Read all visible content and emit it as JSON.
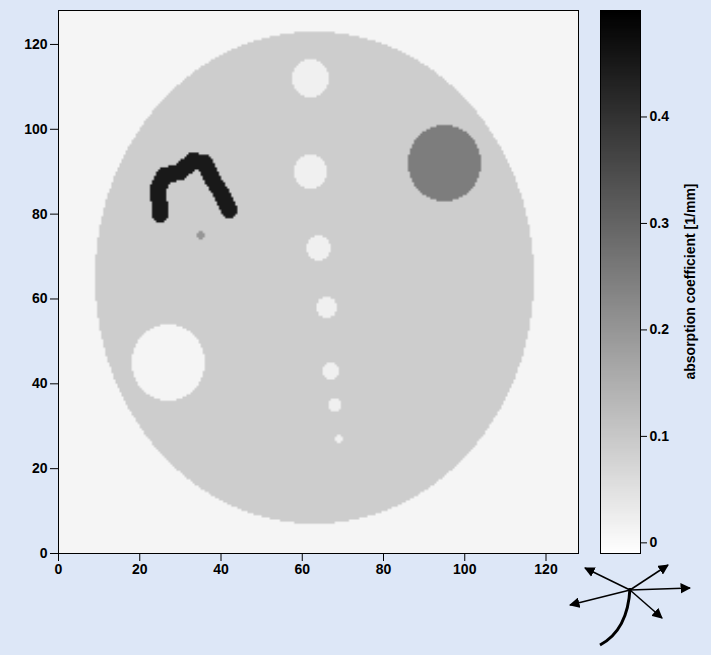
{
  "chart_data": {
    "type": "heatmap",
    "xlim": [
      0,
      128
    ],
    "ylim": [
      0,
      128
    ],
    "xticks": [
      0,
      20,
      40,
      60,
      80,
      100,
      120
    ],
    "yticks": [
      0,
      20,
      40,
      60,
      80,
      100,
      120
    ],
    "background_value": 0.01,
    "objects": [
      {
        "shape": "ellipse",
        "cx": 63,
        "cy": 65,
        "rx": 54,
        "ry": 58,
        "value": 0.09
      },
      {
        "shape": "circle",
        "cx": 27,
        "cy": 45,
        "r": 9,
        "value": 0.01
      },
      {
        "shape": "circle",
        "cx": 95,
        "cy": 92,
        "r": 9,
        "value": 0.25
      },
      {
        "shape": "circle",
        "cx": 62,
        "cy": 112,
        "r": 4.5,
        "value": 0.02
      },
      {
        "shape": "circle",
        "cx": 62,
        "cy": 90,
        "r": 4,
        "value": 0.02
      },
      {
        "shape": "circle",
        "cx": 64,
        "cy": 72,
        "r": 3,
        "value": 0.02
      },
      {
        "shape": "circle",
        "cx": 66,
        "cy": 58,
        "r": 2.5,
        "value": 0.02
      },
      {
        "shape": "circle",
        "cx": 67,
        "cy": 43,
        "r": 2,
        "value": 0.02
      },
      {
        "shape": "circle",
        "cx": 68,
        "cy": 35,
        "r": 1.5,
        "value": 0.02
      },
      {
        "shape": "circle",
        "cx": 69,
        "cy": 27,
        "r": 1,
        "value": 0.02
      },
      {
        "shape": "circle",
        "cx": 35,
        "cy": 75,
        "r": 1,
        "value": 0.2
      },
      {
        "shape": "stroke",
        "points": [
          [
            25,
            80
          ],
          [
            24.5,
            86
          ],
          [
            26,
            89
          ],
          [
            30,
            90
          ],
          [
            33,
            92.5
          ],
          [
            36,
            92
          ],
          [
            38,
            88
          ],
          [
            40,
            85
          ],
          [
            42,
            81
          ]
        ],
        "width": 4,
        "value": 0.45
      }
    ],
    "colorbar": {
      "label": "absorption coefficient [1/mm]",
      "range": [
        -0.01,
        0.5
      ],
      "ticks": [
        0,
        0.1,
        0.2,
        0.3,
        0.4
      ],
      "colors": [
        "#ffffff",
        "#000000"
      ]
    }
  }
}
